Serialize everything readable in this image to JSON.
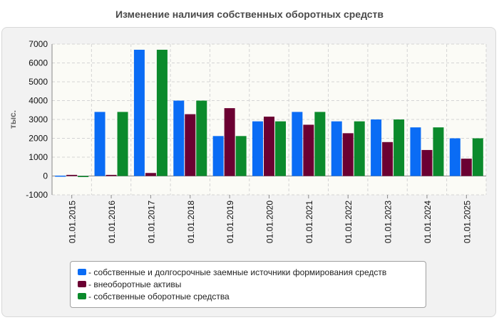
{
  "title": "Изменение наличия собственных оборотных средств",
  "chart_data": {
    "type": "bar",
    "title": "Изменение наличия собственных оборотных средств",
    "ylabel": "тыс.",
    "xlabel": "",
    "ylim": [
      -1000,
      7000
    ],
    "yticks": [
      -1000,
      0,
      1000,
      2000,
      3000,
      4000,
      5000,
      6000,
      7000
    ],
    "grid": true,
    "legend_position": "bottom",
    "categories": [
      "01.01.2015",
      "01.01.2016",
      "01.01.2017",
      "01.01.2018",
      "01.01.2019",
      "01.01.2020",
      "01.01.2021",
      "01.01.2022",
      "01.01.2023",
      "01.01.2024",
      "01.01.2025"
    ],
    "series": [
      {
        "name": "- собственные и долгосрочные заемные источники формирования средств",
        "color": "#0a6cf5",
        "values": [
          20,
          3400,
          6700,
          4000,
          2120,
          2900,
          3400,
          2900,
          3000,
          2580,
          2000
        ]
      },
      {
        "name": "- внеоборотные активы",
        "color": "#6b0032",
        "values": [
          60,
          60,
          160,
          3280,
          3600,
          3150,
          2720,
          2270,
          1800,
          1380,
          920
        ]
      },
      {
        "name": "- собственные оборотные средства",
        "color": "#0b8a2c",
        "values": [
          -40,
          3400,
          6700,
          4000,
          2120,
          2900,
          3400,
          2900,
          3000,
          2580,
          2000
        ]
      }
    ]
  }
}
